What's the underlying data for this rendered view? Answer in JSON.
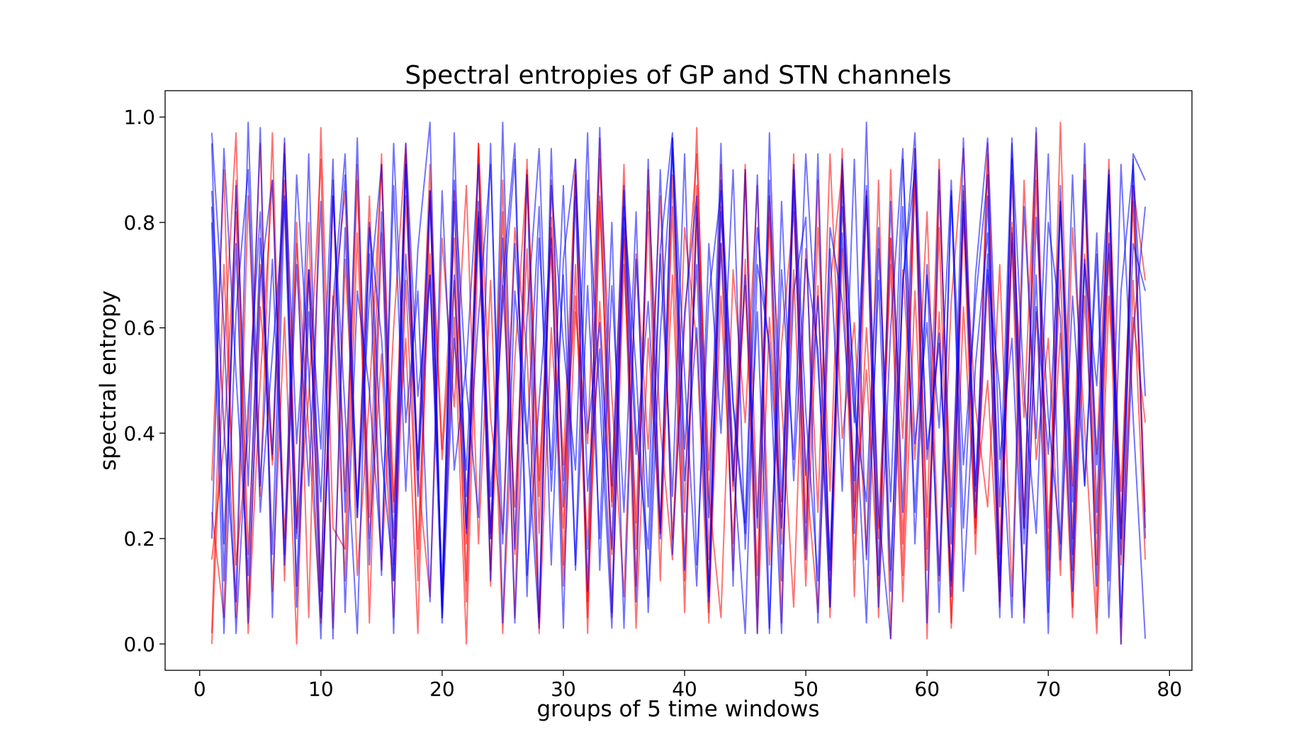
{
  "chart_data": {
    "type": "line",
    "title": "Spectral entropies of GP and STN channels",
    "xlabel": "groups of 5 time windows",
    "ylabel": "spectral entropy",
    "xlim": [
      -2.85,
      81.85
    ],
    "ylim": [
      -0.05,
      1.05
    ],
    "xticks": [
      0,
      10,
      20,
      30,
      40,
      50,
      60,
      70,
      80
    ],
    "yticks": [
      0.0,
      0.2,
      0.4,
      0.6,
      0.8,
      1.0
    ],
    "xtick_labels": [
      "0",
      "10",
      "20",
      "30",
      "40",
      "50",
      "60",
      "70",
      "80"
    ],
    "ytick_labels": [
      "0.0",
      "0.2",
      "0.4",
      "0.6",
      "0.8",
      "1.0"
    ],
    "grid": false,
    "legend": "none",
    "x_start": 1,
    "x_end": 78,
    "colors": {
      "GP": "#ff0000",
      "STN": "#0000ff"
    },
    "line_alpha": 0.55,
    "series": [
      {
        "group": "GP",
        "values": [
          0.31,
          0.9,
          0.05,
          0.85,
          0.28,
          0.97,
          0.12,
          0.8,
          0.05,
          0.98,
          0.22,
          0.18,
          0.88,
          0.24,
          0.93,
          0.15,
          0.85,
          0.33,
          0.91,
          0.05,
          0.86,
          0.19,
          0.95,
          0.11,
          0.88,
          0.17,
          0.92,
          0.21,
          0.79,
          0.34,
          0.9,
          0.05,
          0.85,
          0.26,
          0.91,
          0.18,
          0.82,
          0.12,
          0.89,
          0.25,
          0.98,
          0.16,
          0.83,
          0.29,
          0.9,
          0.07,
          0.85,
          0.19,
          0.93,
          0.23,
          0.88,
          0.12,
          0.91,
          0.27,
          0.86,
          0.05,
          0.9,
          0.19,
          0.88,
          0.24,
          0.92,
          0.11,
          0.86,
          0.21,
          0.95,
          0.17,
          0.89,
          0.22,
          0.93,
          0.14,
          0.99,
          0.2,
          0.88,
          0.15,
          0.92,
          0.23,
          0.87,
          0.25
        ]
      },
      {
        "group": "GP",
        "values": [
          0.02,
          0.72,
          0.15,
          0.4,
          0.95,
          0.1,
          0.62,
          0.0,
          0.71,
          0.04,
          0.66,
          0.12,
          0.78,
          0.2,
          0.55,
          0.05,
          0.69,
          0.18,
          0.74,
          0.09,
          0.62,
          0.0,
          0.79,
          0.14,
          0.68,
          0.26,
          0.75,
          0.02,
          0.6,
          0.22,
          0.72,
          0.08,
          0.65,
          0.17,
          0.77,
          0.03,
          0.58,
          0.21,
          0.7,
          0.12,
          0.81,
          0.06,
          0.66,
          0.19,
          0.73,
          0.02,
          0.62,
          0.24,
          0.71,
          0.11,
          0.68,
          0.05,
          0.75,
          0.16,
          0.6,
          0.2,
          0.72,
          0.08,
          0.67,
          0.14,
          0.79,
          0.03,
          0.64,
          0.22,
          0.7,
          0.1,
          0.76,
          0.05,
          0.63,
          0.18,
          0.71,
          0.07,
          0.66,
          0.21,
          0.74,
          0.0,
          0.69,
          0.16
        ]
      },
      {
        "group": "GP",
        "values": [
          0.25,
          0.05,
          0.88,
          0.17,
          0.72,
          0.34,
          0.95,
          0.22,
          0.8,
          0.1,
          0.85,
          0.29,
          0.91,
          0.04,
          0.78,
          0.25,
          0.93,
          0.12,
          0.86,
          0.37,
          0.77,
          0.08,
          0.94,
          0.2,
          0.82,
          0.05,
          0.89,
          0.31,
          0.75,
          0.15,
          0.92,
          0.02,
          0.84,
          0.27,
          0.79,
          0.11,
          0.9,
          0.21,
          0.83,
          0.06,
          0.87,
          0.33,
          0.76,
          0.14,
          0.91,
          0.24,
          0.81,
          0.04,
          0.88,
          0.18,
          0.79,
          0.29,
          0.94,
          0.09,
          0.85,
          0.22,
          0.77,
          0.13,
          0.9,
          0.01,
          0.86,
          0.26,
          0.82,
          0.17,
          0.93,
          0.07,
          0.8,
          0.24,
          0.88,
          0.12,
          0.84,
          0.3,
          0.91,
          0.05,
          0.78,
          0.2,
          0.87,
          0.69
        ]
      },
      {
        "group": "GP",
        "values": [
          0.16,
          0.38,
          0.82,
          0.02,
          0.5,
          0.88,
          0.2,
          0.76,
          0.4,
          0.05,
          0.63,
          0.86,
          0.13,
          0.47,
          0.91,
          0.27,
          0.58,
          0.02,
          0.84,
          0.35,
          0.69,
          0.12,
          0.95,
          0.43,
          0.21,
          0.79,
          0.55,
          0.04,
          0.88,
          0.31,
          0.66,
          0.18,
          0.92,
          0.47,
          0.09,
          0.74,
          0.37,
          0.85,
          0.2,
          0.61,
          0.93,
          0.28,
          0.05,
          0.71,
          0.42,
          0.87,
          0.15,
          0.57,
          0.82,
          0.33,
          0.06,
          0.68,
          0.9,
          0.24,
          0.52,
          0.11,
          0.77,
          0.39,
          0.94,
          0.18,
          0.63,
          0.04,
          0.81,
          0.45,
          0.26,
          0.72,
          0.09,
          0.88,
          0.35,
          0.58,
          0.13,
          0.79,
          0.41,
          0.02,
          0.66,
          0.29,
          0.84,
          0.22
        ]
      },
      {
        "group": "GP",
        "values": [
          0.0,
          0.55,
          0.97,
          0.07,
          0.64,
          0.35,
          0.88,
          0.21,
          0.47,
          0.92,
          0.03,
          0.73,
          0.26,
          0.85,
          0.14,
          0.6,
          0.95,
          0.32,
          0.09,
          0.77,
          0.45,
          0.87,
          0.19,
          0.69,
          0.02,
          0.54,
          0.9,
          0.28,
          0.81,
          0.11,
          0.63,
          0.38,
          0.96,
          0.05,
          0.72,
          0.23,
          0.86,
          0.41,
          0.16,
          0.79,
          0.57,
          0.04,
          0.91,
          0.3,
          0.68,
          0.13,
          0.84,
          0.46,
          0.07,
          0.75,
          0.25,
          0.93,
          0.39,
          0.61,
          0.17,
          0.88,
          0.01,
          0.71,
          0.35,
          0.82,
          0.12,
          0.65,
          0.94,
          0.27,
          0.5,
          0.08,
          0.79,
          0.43,
          0.97,
          0.22,
          0.59,
          0.05,
          0.74,
          0.36,
          0.89,
          0.15,
          0.62,
          0.42
        ]
      },
      {
        "group": "STN",
        "values": [
          0.95,
          0.12,
          0.87,
          0.3,
          0.98,
          0.05,
          0.85,
          0.2,
          0.93,
          0.1,
          0.88,
          0.25,
          0.96,
          0.15,
          0.82,
          0.02,
          0.91,
          0.28,
          0.86,
          0.07,
          0.97,
          0.22,
          0.84,
          0.12,
          0.99,
          0.18,
          0.89,
          0.05,
          0.94,
          0.26,
          0.85,
          0.1,
          0.98,
          0.3,
          0.87,
          0.08,
          0.92,
          0.2,
          0.96,
          0.14,
          0.83,
          0.24,
          0.95,
          0.11,
          0.9,
          0.02,
          0.97,
          0.27,
          0.86,
          0.16,
          0.93,
          0.07,
          0.88,
          0.21,
          0.99,
          0.13,
          0.84,
          0.25,
          0.94,
          0.04,
          0.9,
          0.19,
          0.96,
          0.29,
          0.85,
          0.1,
          0.92,
          0.22,
          0.98,
          0.06,
          0.87,
          0.17,
          0.95,
          0.25,
          0.89,
          0.0,
          0.93,
          0.88
        ]
      },
      {
        "group": "STN",
        "values": [
          0.83,
          0.19,
          0.76,
          0.04,
          0.69,
          0.88,
          0.15,
          0.72,
          0.3,
          0.84,
          0.01,
          0.79,
          0.24,
          0.66,
          0.91,
          0.12,
          0.74,
          0.35,
          0.86,
          0.06,
          0.7,
          0.21,
          0.82,
          0.28,
          0.64,
          0.92,
          0.09,
          0.77,
          0.33,
          0.87,
          0.14,
          0.68,
          0.2,
          0.8,
          0.03,
          0.73,
          0.26,
          0.9,
          0.17,
          0.63,
          0.85,
          0.08,
          0.76,
          0.31,
          0.7,
          0.22,
          0.88,
          0.12,
          0.67,
          0.81,
          0.04,
          0.75,
          0.29,
          0.92,
          0.16,
          0.69,
          0.1,
          0.83,
          0.25,
          0.72,
          0.06,
          0.86,
          0.34,
          0.65,
          0.89,
          0.13,
          0.78,
          0.19,
          0.7,
          0.02,
          0.84,
          0.27,
          0.73,
          0.11,
          0.87,
          0.2,
          0.76,
          0.67
        ]
      },
      {
        "group": "STN",
        "values": [
          0.97,
          0.6,
          0.02,
          0.45,
          0.82,
          0.17,
          0.93,
          0.38,
          0.71,
          0.05,
          0.58,
          0.89,
          0.26,
          0.74,
          0.13,
          0.95,
          0.42,
          0.67,
          0.08,
          0.86,
          0.33,
          0.53,
          0.91,
          0.2,
          0.77,
          0.04,
          0.62,
          0.94,
          0.29,
          0.7,
          0.15,
          0.88,
          0.47,
          0.03,
          0.81,
          0.36,
          0.65,
          0.22,
          0.96,
          0.51,
          0.11,
          0.76,
          0.4,
          0.9,
          0.18,
          0.63,
          0.02,
          0.84,
          0.31,
          0.73,
          0.56,
          0.07,
          0.92,
          0.44,
          0.27,
          0.79,
          0.14,
          0.68,
          0.97,
          0.35,
          0.59,
          0.09,
          0.87,
          0.24,
          0.71,
          0.48,
          0.05,
          0.83,
          0.39,
          0.93,
          0.16,
          0.66,
          0.3,
          0.78,
          0.12,
          0.91,
          0.43,
          0.01
        ]
      },
      {
        "group": "STN",
        "values": [
          0.86,
          0.41,
          0.08,
          0.99,
          0.3,
          0.73,
          0.17,
          0.89,
          0.52,
          0.01,
          0.65,
          0.93,
          0.24,
          0.8,
          0.36,
          0.12,
          0.95,
          0.47,
          0.7,
          0.05,
          0.84,
          0.28,
          0.62,
          0.91,
          0.19,
          0.76,
          0.4,
          0.03,
          0.87,
          0.57,
          0.33,
          0.97,
          0.14,
          0.68,
          0.25,
          0.82,
          0.06,
          0.59,
          0.94,
          0.37,
          0.72,
          0.1,
          0.88,
          0.45,
          0.21,
          0.79,
          0.55,
          0.02,
          0.9,
          0.32,
          0.66,
          0.16,
          0.83,
          0.49,
          0.04,
          0.75,
          0.27,
          0.92,
          0.38,
          0.61,
          0.13,
          0.85,
          0.22,
          0.7,
          0.96,
          0.35,
          0.58,
          0.07,
          0.81,
          0.43,
          0.19,
          0.89,
          0.3,
          0.74,
          0.05,
          0.67,
          0.91,
          0.47
        ]
      },
      {
        "group": "STN",
        "values": [
          0.2,
          0.94,
          0.51,
          0.13,
          0.77,
          0.36,
          0.96,
          0.07,
          0.63,
          0.27,
          0.85,
          0.44,
          0.02,
          0.79,
          0.58,
          0.2,
          0.91,
          0.33,
          0.7,
          0.11,
          0.88,
          0.49,
          0.24,
          0.95,
          0.04,
          0.67,
          0.38,
          0.83,
          0.15,
          0.73,
          0.92,
          0.29,
          0.56,
          0.06,
          0.86,
          0.4,
          0.18,
          0.75,
          0.97,
          0.31,
          0.6,
          0.09,
          0.82,
          0.46,
          0.23,
          0.89,
          0.03,
          0.71,
          0.35,
          0.93,
          0.53,
          0.14,
          0.78,
          0.42,
          0.87,
          0.25,
          0.01,
          0.69,
          0.9,
          0.37,
          0.57,
          0.12,
          0.84,
          0.3,
          0.74,
          0.05,
          0.95,
          0.48,
          0.21,
          0.8,
          0.62,
          0.1,
          0.88,
          0.34,
          0.76,
          0.17,
          0.92,
          0.2
        ]
      },
      {
        "group": "STN",
        "values": [
          0.8,
          0.02,
          0.63,
          0.9,
          0.25,
          0.55,
          0.84,
          0.11,
          0.71,
          0.37,
          0.92,
          0.06,
          0.67,
          0.48,
          0.16,
          0.87,
          0.29,
          0.75,
          0.99,
          0.04,
          0.58,
          0.33,
          0.81,
          0.21,
          0.69,
          0.95,
          0.13,
          0.46,
          0.77,
          0.03,
          0.89,
          0.4,
          0.61,
          0.18,
          0.83,
          0.52,
          0.09,
          0.74,
          0.28,
          0.93,
          0.15,
          0.66,
          0.86,
          0.35,
          0.02,
          0.72,
          0.57,
          0.22,
          0.91,
          0.44,
          0.12,
          0.79,
          0.65,
          0.31,
          0.85,
          0.07,
          0.6,
          0.94,
          0.19,
          0.7,
          0.41,
          0.88,
          0.1,
          0.53,
          0.78,
          0.26,
          0.96,
          0.04,
          0.64,
          0.36,
          0.83,
          0.14,
          0.72,
          0.49,
          0.9,
          0.05,
          0.59,
          0.83
        ]
      }
    ]
  }
}
